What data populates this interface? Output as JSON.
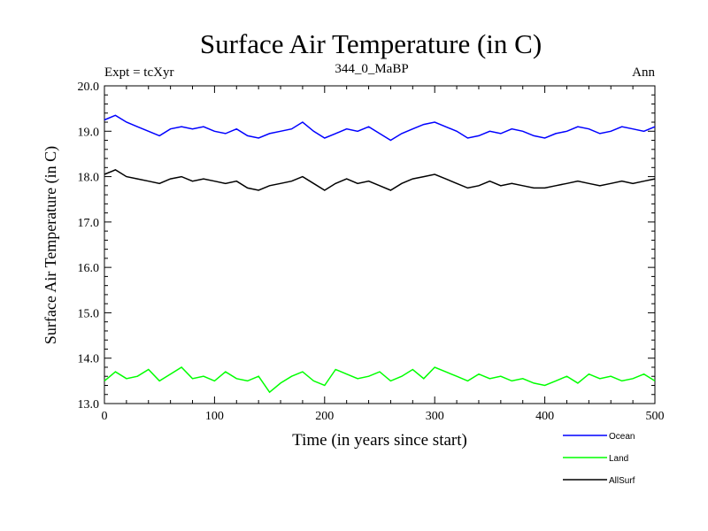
{
  "chart_data": {
    "type": "line",
    "title": "Surface Air Temperature (in C)",
    "subtitle_left": "Expt = tcXyr",
    "subtitle_center": "344_0_MaBP",
    "subtitle_right": "Ann",
    "xlabel": "Time (in years since start)",
    "ylabel": "Surface Air Temperature (in C)",
    "xlim": [
      0,
      500
    ],
    "ylim": [
      13.0,
      20.0
    ],
    "xticks": [
      0,
      100,
      200,
      300,
      400,
      500
    ],
    "yticks": [
      "13.0",
      "14.0",
      "15.0",
      "16.0",
      "17.0",
      "18.0",
      "19.0",
      "20.0"
    ],
    "grid": false,
    "legend_position": "below-right",
    "series": [
      {
        "name": "Ocean",
        "color": "#0000ff",
        "x": [
          0,
          10,
          20,
          30,
          40,
          50,
          60,
          70,
          80,
          90,
          100,
          110,
          120,
          130,
          140,
          150,
          160,
          170,
          180,
          190,
          200,
          210,
          220,
          230,
          240,
          250,
          260,
          270,
          280,
          290,
          300,
          310,
          320,
          330,
          340,
          350,
          360,
          370,
          380,
          390,
          400,
          410,
          420,
          430,
          440,
          450,
          460,
          470,
          480,
          490,
          500
        ],
        "values": [
          19.25,
          19.35,
          19.2,
          19.1,
          19.0,
          18.9,
          19.05,
          19.1,
          19.05,
          19.1,
          19.0,
          18.95,
          19.05,
          18.9,
          18.85,
          18.95,
          19.0,
          19.05,
          19.2,
          19.0,
          18.85,
          18.95,
          19.05,
          19.0,
          19.1,
          18.95,
          18.8,
          18.95,
          19.05,
          19.15,
          19.2,
          19.1,
          19.0,
          18.85,
          18.9,
          19.0,
          18.95,
          19.05,
          19.0,
          18.9,
          18.85,
          18.95,
          19.0,
          19.1,
          19.05,
          18.95,
          19.0,
          19.1,
          19.05,
          19.0,
          19.1
        ]
      },
      {
        "name": "Land",
        "color": "#00ff00",
        "x": [
          0,
          10,
          20,
          30,
          40,
          50,
          60,
          70,
          80,
          90,
          100,
          110,
          120,
          130,
          140,
          150,
          160,
          170,
          180,
          190,
          200,
          210,
          220,
          230,
          240,
          250,
          260,
          270,
          280,
          290,
          300,
          310,
          320,
          330,
          340,
          350,
          360,
          370,
          380,
          390,
          400,
          410,
          420,
          430,
          440,
          450,
          460,
          470,
          480,
          490,
          500
        ],
        "values": [
          13.5,
          13.7,
          13.55,
          13.6,
          13.75,
          13.5,
          13.65,
          13.8,
          13.55,
          13.6,
          13.5,
          13.7,
          13.55,
          13.5,
          13.6,
          13.25,
          13.45,
          13.6,
          13.7,
          13.5,
          13.4,
          13.75,
          13.65,
          13.55,
          13.6,
          13.7,
          13.5,
          13.6,
          13.75,
          13.55,
          13.8,
          13.7,
          13.6,
          13.5,
          13.65,
          13.55,
          13.6,
          13.5,
          13.55,
          13.45,
          13.4,
          13.5,
          13.6,
          13.45,
          13.65,
          13.55,
          13.6,
          13.5,
          13.55,
          13.65,
          13.5
        ]
      },
      {
        "name": "AllSurf",
        "color": "#000000",
        "x": [
          0,
          10,
          20,
          30,
          40,
          50,
          60,
          70,
          80,
          90,
          100,
          110,
          120,
          130,
          140,
          150,
          160,
          170,
          180,
          190,
          200,
          210,
          220,
          230,
          240,
          250,
          260,
          270,
          280,
          290,
          300,
          310,
          320,
          330,
          340,
          350,
          360,
          370,
          380,
          390,
          400,
          410,
          420,
          430,
          440,
          450,
          460,
          470,
          480,
          490,
          500
        ],
        "values": [
          18.05,
          18.15,
          18.0,
          17.95,
          17.9,
          17.85,
          17.95,
          18.0,
          17.9,
          17.95,
          17.9,
          17.85,
          17.9,
          17.75,
          17.7,
          17.8,
          17.85,
          17.9,
          18.0,
          17.85,
          17.7,
          17.85,
          17.95,
          17.85,
          17.9,
          17.8,
          17.7,
          17.85,
          17.95,
          18.0,
          18.05,
          17.95,
          17.85,
          17.75,
          17.8,
          17.9,
          17.8,
          17.85,
          17.8,
          17.75,
          17.75,
          17.8,
          17.85,
          17.9,
          17.85,
          17.8,
          17.85,
          17.9,
          17.85,
          17.9,
          17.95
        ]
      }
    ]
  }
}
